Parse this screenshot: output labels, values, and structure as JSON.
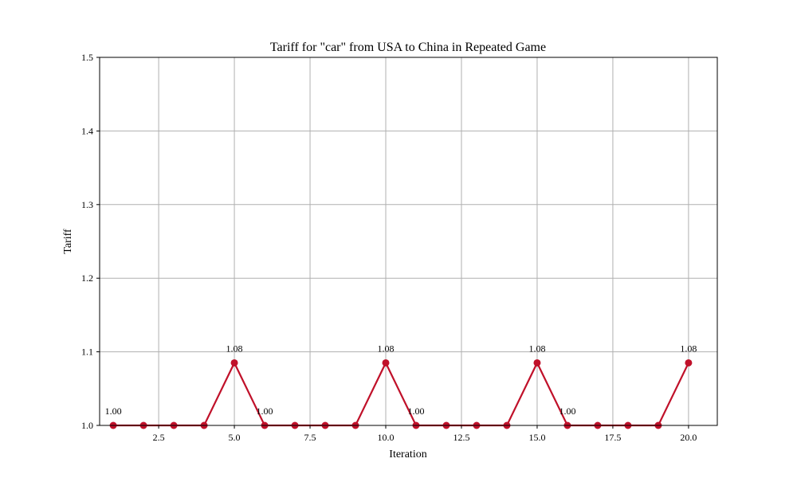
{
  "chart_data": {
    "type": "line",
    "title": "Tariff for \"car\" from USA to China in Repeated Game",
    "xlabel": "Iteration",
    "ylabel": "Tariff",
    "xlim": [
      0.55,
      20.95
    ],
    "ylim": [
      1.0,
      1.5
    ],
    "x_ticks": [
      2.5,
      5.0,
      7.5,
      10.0,
      12.5,
      15.0,
      17.5,
      20.0
    ],
    "x_tick_labels": [
      "2.5",
      "5.0",
      "7.5",
      "10.0",
      "12.5",
      "15.0",
      "17.5",
      "20.0"
    ],
    "y_ticks": [
      1.0,
      1.1,
      1.2,
      1.3,
      1.4,
      1.5
    ],
    "y_tick_labels": [
      "1.0",
      "1.1",
      "1.2",
      "1.3",
      "1.4",
      "1.5"
    ],
    "grid": true,
    "series": [
      {
        "color": "#c0112a",
        "marker": "circle",
        "x": [
          1,
          2,
          3,
          4,
          5,
          6,
          7,
          8,
          9,
          10,
          11,
          12,
          13,
          14,
          15,
          16,
          17,
          18,
          19,
          20
        ],
        "y": [
          1.0,
          1.0,
          1.0,
          1.0,
          1.085,
          1.0,
          1.0,
          1.0,
          1.0,
          1.085,
          1.0,
          1.0,
          1.0,
          1.0,
          1.085,
          1.0,
          1.0,
          1.0,
          1.0,
          1.085
        ]
      }
    ],
    "annotations": [
      {
        "x": 1,
        "y": 1.0,
        "text": "1.00"
      },
      {
        "x": 5,
        "y": 1.085,
        "text": "1.08"
      },
      {
        "x": 6,
        "y": 1.0,
        "text": "1.00"
      },
      {
        "x": 10,
        "y": 1.085,
        "text": "1.08"
      },
      {
        "x": 11,
        "y": 1.0,
        "text": "1.00"
      },
      {
        "x": 15,
        "y": 1.085,
        "text": "1.08"
      },
      {
        "x": 16,
        "y": 1.0,
        "text": "1.00"
      },
      {
        "x": 20,
        "y": 1.085,
        "text": "1.08"
      }
    ],
    "colors": {
      "line": "#c0112a",
      "grid": "#b0b0b0",
      "axes": "#000000"
    }
  }
}
